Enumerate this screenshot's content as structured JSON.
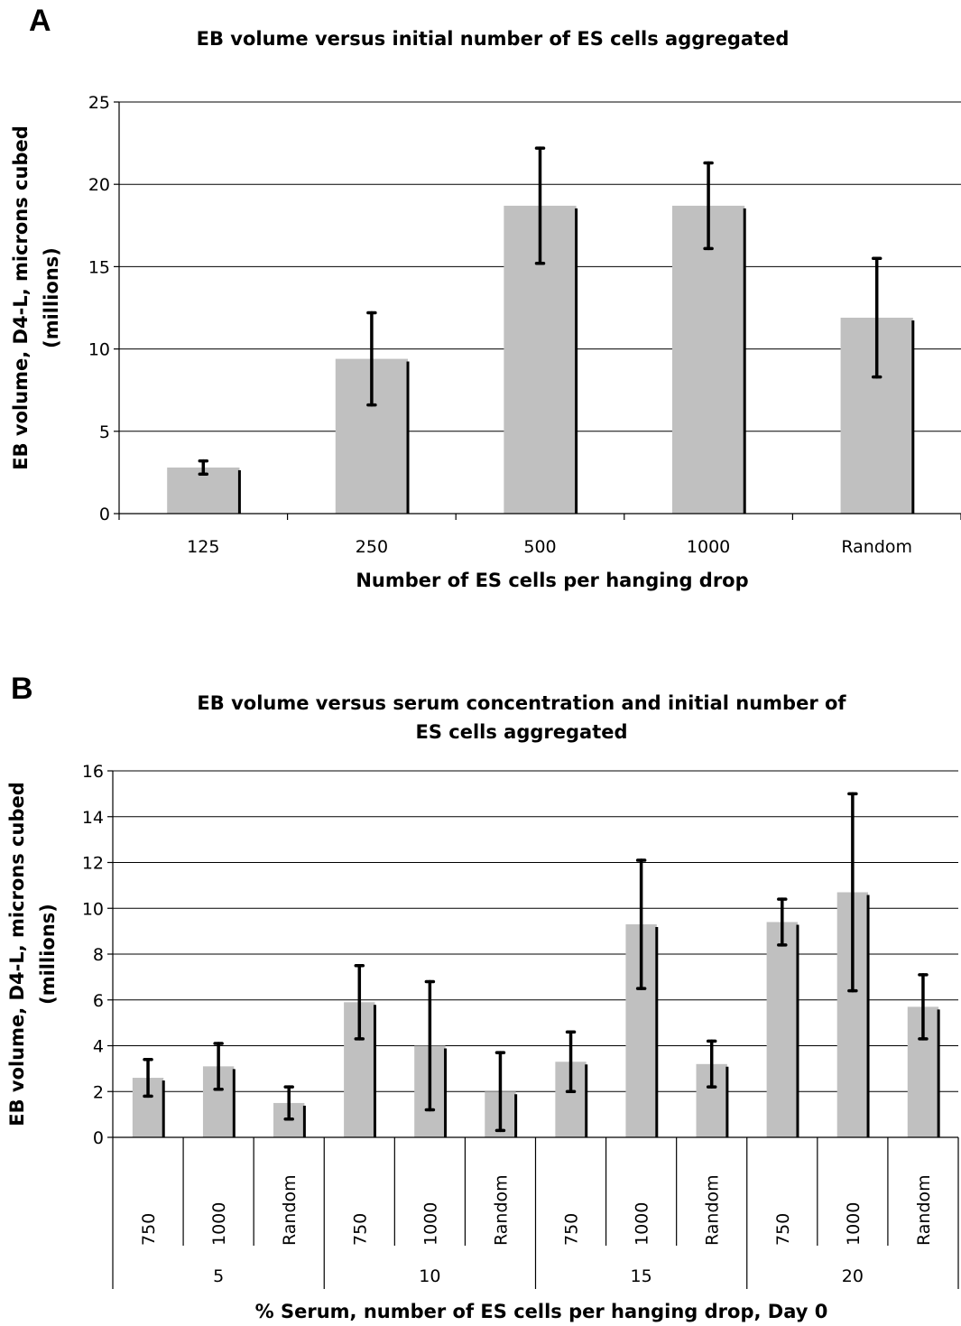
{
  "chart_data": [
    {
      "type": "bar",
      "panel": "A",
      "title": "EB volume versus initial number of ES cells aggregated",
      "xlabel": "Number of ES cells per hanging drop",
      "ylabel": [
        "EB volume, D4-L, microns cubed",
        "(millions)"
      ],
      "ylim": [
        0,
        25
      ],
      "yticks": [
        0,
        5,
        10,
        15,
        20,
        25
      ],
      "grid": true,
      "categories": [
        "125",
        "250",
        "500",
        "1000",
        "Random"
      ],
      "values": [
        2.8,
        9.4,
        18.7,
        18.7,
        11.9
      ],
      "errors": [
        0.4,
        2.8,
        3.5,
        2.6,
        3.6
      ]
    },
    {
      "type": "bar",
      "panel": "B",
      "title": [
        "EB volume versus serum concentration and initial number of",
        "ES cells aggregated"
      ],
      "xlabel": "% Serum, number of ES cells per hanging drop, Day 0",
      "ylabel": [
        "EB volume, D4-L, microns cubed",
        "(millions)"
      ],
      "ylim": [
        0,
        16
      ],
      "yticks": [
        0,
        2,
        4,
        6,
        8,
        10,
        12,
        14,
        16
      ],
      "grid": true,
      "groups": [
        "5",
        "10",
        "15",
        "20"
      ],
      "categories": [
        "750",
        "1000",
        "Random",
        "750",
        "1000",
        "Random",
        "750",
        "1000",
        "Random",
        "750",
        "1000",
        "Random"
      ],
      "values": [
        2.6,
        3.1,
        1.5,
        5.9,
        4.0,
        2.0,
        3.3,
        9.3,
        3.2,
        9.4,
        10.7,
        5.7
      ],
      "errors": [
        0.8,
        1.0,
        0.7,
        1.6,
        2.8,
        1.7,
        1.3,
        2.8,
        1.0,
        1.0,
        4.3,
        1.4
      ]
    }
  ]
}
